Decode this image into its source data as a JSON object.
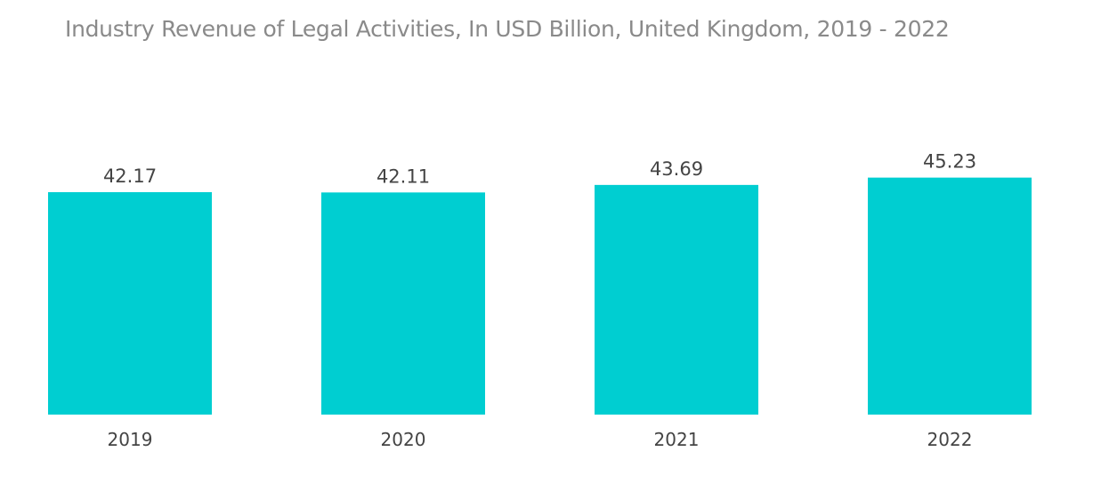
{
  "chart_data": {
    "type": "bar",
    "title": "Industry Revenue of Legal Activities, In USD Billion, United Kingdom, 2019 - 2022",
    "categories": [
      "2019",
      "2020",
      "2021",
      "2022"
    ],
    "series": [
      {
        "values": [
          42.17,
          42.11,
          43.69,
          45.23
        ],
        "color": "#00ced1"
      }
    ],
    "data_labels": [
      "42.17",
      "42.11",
      "43.69",
      "45.23"
    ],
    "xlabel": "",
    "ylabel": "",
    "y_axis_visible": false,
    "grid": false,
    "legend": "none"
  }
}
